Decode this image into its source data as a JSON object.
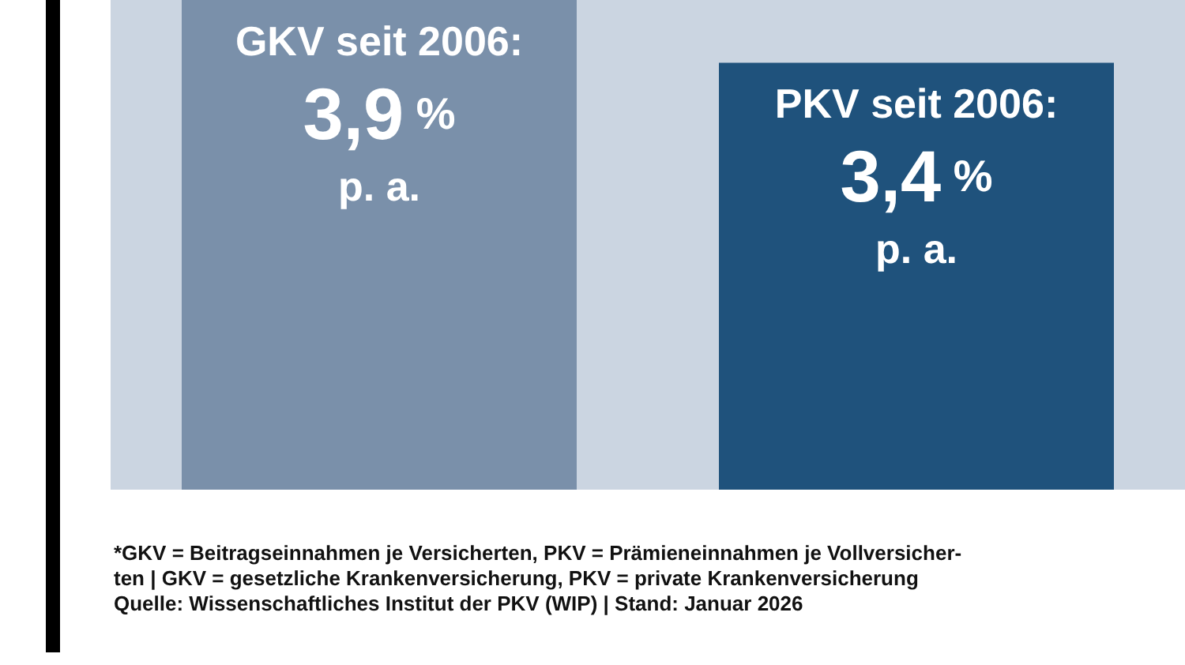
{
  "chart_data": {
    "type": "bar",
    "categories": [
      null,
      null
    ],
    "values": [
      3.9,
      3.4
    ],
    "colors": [
      "#7a90aa",
      "#1f527c"
    ],
    "value_labels": [
      "GKV seit 2006:\n3,9 %\np. a.",
      "PKV seit 2006:\n3,4 %\np. a."
    ],
    "ylim": [
      0,
      3.9
    ],
    "tick_labels": false,
    "annotations": [
      "*GKV = Beitragseinnahmen je Versicherten, PKV = Prämieneinnahmen je Vollversicher-",
      "ten | GKV = gesetzliche Krankenversicherung, PKV = private Krankenversicherung",
      "Quelle: Wissenschaftliches Institut der PKV (WIP) | Stand: Januar 2026"
    ]
  }
}
